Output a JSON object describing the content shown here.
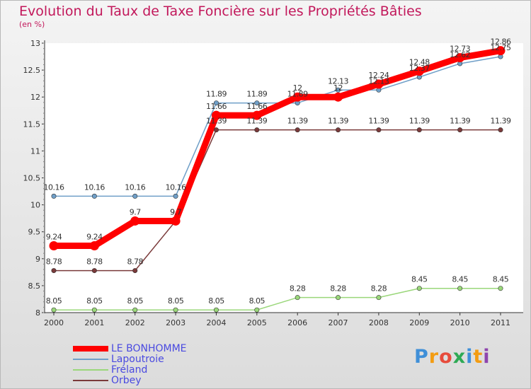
{
  "chart_data": {
    "type": "line",
    "title": "Evolution du Taux de Taxe Foncière sur les Propriétés Bâties",
    "subtitle": "(en %)",
    "xlabel": "",
    "ylabel": "",
    "ylim": [
      8,
      13
    ],
    "y_ticks": [
      "8",
      "8.5",
      "9",
      "9.5",
      "10",
      "10.5",
      "11",
      "11.5",
      "12",
      "12.5",
      "13"
    ],
    "categories": [
      "2000",
      "2001",
      "2002",
      "2003",
      "2004",
      "2005",
      "2006",
      "2007",
      "2008",
      "2009",
      "2010",
      "2011"
    ],
    "grid": false,
    "legend_position": "bottom-left",
    "series": [
      {
        "name": "LE BONHOMME",
        "color": "#ff0000",
        "values": [
          9.24,
          9.24,
          9.7,
          9.7,
          11.66,
          11.66,
          12,
          12,
          12.24,
          12.48,
          12.73,
          12.86
        ]
      },
      {
        "name": "Lapoutroie",
        "color": "#6f9fc8",
        "values": [
          10.16,
          10.16,
          10.16,
          10.16,
          11.89,
          11.89,
          11.89,
          12.13,
          12.13,
          12.37,
          12.62,
          12.75
        ]
      },
      {
        "name": "Fréland",
        "color": "#9ad77a",
        "values": [
          8.05,
          8.05,
          8.05,
          8.05,
          8.05,
          8.05,
          8.28,
          8.28,
          8.28,
          8.45,
          8.45,
          8.45
        ]
      },
      {
        "name": "Orbey",
        "color": "#7a3a3a",
        "values": [
          8.78,
          8.78,
          8.78,
          9.7,
          11.39,
          11.39,
          11.39,
          11.39,
          11.39,
          11.39,
          11.39,
          11.39
        ]
      }
    ]
  },
  "logo": {
    "text": "Proxiti",
    "colors": [
      "#3f8fd8",
      "#f39c12",
      "#e74c3c",
      "#2eaa55",
      "#3f8fd8",
      "#f39c12",
      "#8e44ad"
    ]
  }
}
